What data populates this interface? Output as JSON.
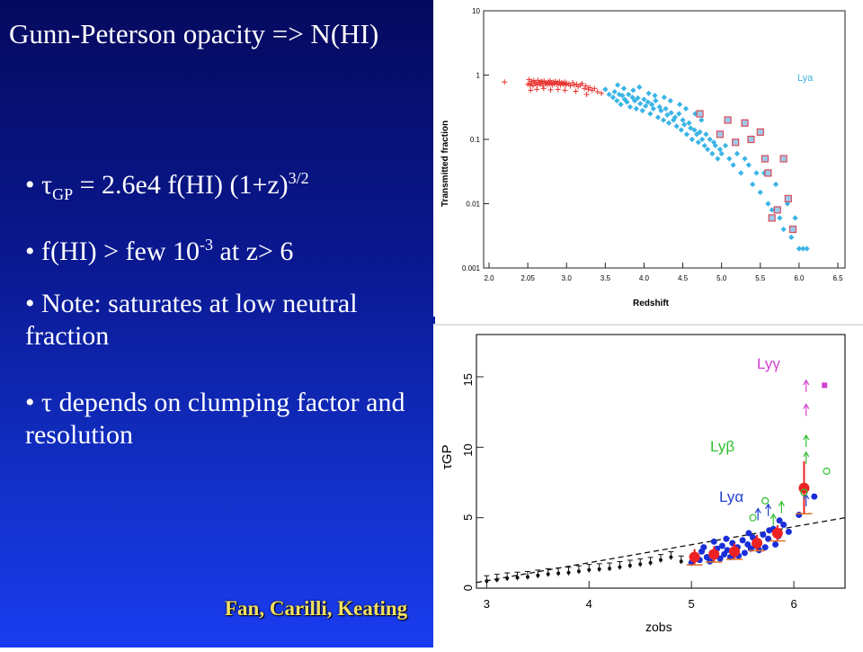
{
  "slide": {
    "title": "Gunn-Peterson opacity => N(HI)",
    "bullet1": {
      "tau": "τ",
      "sub": "GP",
      "mid": " = 2.6e4 f(HI) (1+z)",
      "sup": "3/2"
    },
    "bullet2": {
      "pre": "f(HI) > few 10",
      "sup": "-3",
      "post": " at z> 6"
    },
    "bullet3": "Note: saturates at low neutral fraction",
    "bullet4": "τ depends on clumping factor and resolution",
    "credit": "Fan, Carilli, Keating",
    "colors": {
      "bg_top": "#050a5e",
      "bg_bottom": "#1a3cf0",
      "text": "#ffffff",
      "credit": "#f4e063"
    }
  },
  "chart_data": [
    {
      "type": "scatter",
      "ylabel": "Transmitted fraction",
      "xlabel": "Redshift",
      "legend": "Lya",
      "legend_placement": "top-right",
      "x_ticks": [
        "2.0",
        "2.05",
        "3.0",
        "3.5",
        "4.0",
        "4.5",
        "5.0",
        "5.5",
        "6.0",
        "6.5"
      ],
      "y_ticks": [
        "10",
        "1",
        "0.1",
        "0.01",
        "0.001"
      ],
      "y_scale": "log",
      "ylim": [
        0.001,
        10
      ],
      "series": [
        {
          "color": "#e8332f",
          "marker": "plus",
          "x": [
            2.02,
            2.05,
            2.08,
            2.1,
            2.13,
            2.15,
            2.18,
            2.2,
            2.22,
            2.25,
            2.28,
            2.3,
            2.33,
            2.35,
            2.38,
            2.4,
            2.42,
            2.45,
            2.48,
            2.5,
            2.53,
            2.55,
            2.58,
            2.6,
            2.63,
            2.65,
            2.68,
            2.7,
            2.73,
            2.75,
            2.78,
            2.8,
            2.83,
            2.85,
            2.88,
            2.9,
            2.93,
            2.95,
            2.98,
            3.0,
            3.03,
            3.05,
            3.08,
            3.1,
            3.13,
            3.15,
            3.18,
            3.2,
            3.23,
            3.25,
            3.28,
            3.3,
            3.33,
            3.36,
            3.4,
            3.45,
            2.12,
            2.27,
            2.44,
            2.61,
            2.79,
            2.96,
            3.12,
            3.26
          ],
          "y": [
            0.78,
            0.72,
            0.85,
            0.7,
            0.75,
            0.8,
            0.68,
            0.82,
            0.74,
            0.77,
            0.7,
            0.83,
            0.76,
            0.72,
            0.8,
            0.78,
            0.69,
            0.81,
            0.74,
            0.76,
            0.71,
            0.79,
            0.73,
            0.82,
            0.75,
            0.7,
            0.78,
            0.74,
            0.8,
            0.72,
            0.77,
            0.73,
            0.79,
            0.7,
            0.76,
            0.74,
            0.72,
            0.78,
            0.7,
            0.75,
            0.73,
            0.68,
            0.76,
            0.7,
            0.72,
            0.66,
            0.7,
            0.74,
            0.62,
            0.68,
            0.6,
            0.64,
            0.58,
            0.62,
            0.55,
            0.52,
            0.58,
            0.6,
            0.62,
            0.59,
            0.6,
            0.58,
            0.56,
            0.5
          ]
        },
        {
          "color": "#3ab4e6",
          "marker": "diamond",
          "x": [
            3.5,
            3.55,
            3.6,
            3.62,
            3.65,
            3.68,
            3.7,
            3.72,
            3.75,
            3.78,
            3.8,
            3.82,
            3.85,
            3.88,
            3.9,
            3.92,
            3.95,
            3.98,
            4.0,
            4.02,
            4.05,
            4.08,
            4.1,
            4.12,
            4.15,
            4.18,
            4.2,
            4.22,
            4.25,
            4.28,
            4.3,
            4.32,
            4.35,
            4.38,
            4.4,
            4.42,
            4.45,
            4.48,
            4.5,
            4.52,
            4.55,
            4.58,
            4.6,
            4.62,
            4.65,
            4.68,
            4.7,
            4.72,
            4.75,
            4.78,
            4.8,
            4.82,
            4.85,
            4.88,
            4.9,
            4.92,
            4.95,
            4.98,
            5.0,
            5.05,
            5.1,
            5.15,
            5.2,
            5.25,
            5.3,
            5.35,
            5.4,
            5.45,
            5.5,
            5.55,
            5.6,
            5.65,
            5.7,
            5.75,
            5.8,
            5.85,
            5.9,
            5.95,
            6.0,
            6.05,
            6.1,
            3.66,
            3.74,
            3.86,
            3.94,
            4.06,
            4.14,
            4.26,
            4.34,
            4.46,
            4.54,
            4.66,
            4.74
          ],
          "y": [
            0.6,
            0.5,
            0.45,
            0.55,
            0.4,
            0.5,
            0.35,
            0.48,
            0.42,
            0.38,
            0.5,
            0.32,
            0.45,
            0.4,
            0.3,
            0.44,
            0.36,
            0.28,
            0.42,
            0.33,
            0.38,
            0.25,
            0.35,
            0.3,
            0.4,
            0.22,
            0.32,
            0.28,
            0.2,
            0.3,
            0.24,
            0.18,
            0.26,
            0.2,
            0.22,
            0.16,
            0.25,
            0.14,
            0.2,
            0.17,
            0.12,
            0.18,
            0.15,
            0.1,
            0.14,
            0.12,
            0.09,
            0.13,
            0.1,
            0.08,
            0.12,
            0.07,
            0.1,
            0.06,
            0.09,
            0.08,
            0.05,
            0.07,
            0.06,
            0.08,
            0.05,
            0.04,
            0.06,
            0.03,
            0.05,
            0.04,
            0.02,
            0.03,
            0.015,
            0.03,
            0.01,
            0.008,
            0.02,
            0.006,
            0.004,
            0.01,
            0.003,
            0.006,
            0.002,
            0.002,
            0.002,
            0.7,
            0.62,
            0.58,
            0.65,
            0.52,
            0.48,
            0.45,
            0.4,
            0.35,
            0.3,
            0.25,
            0.2
          ]
        },
        {
          "color": "#d94a5a",
          "marker": "open-square",
          "x": [
            4.72,
            4.98,
            5.08,
            5.18,
            5.3,
            5.38,
            5.5,
            5.56,
            5.6,
            5.65,
            5.72,
            5.8,
            5.86,
            5.92
          ],
          "y": [
            0.25,
            0.12,
            0.2,
            0.09,
            0.18,
            0.1,
            0.13,
            0.05,
            0.03,
            0.006,
            0.008,
            0.05,
            0.012,
            0.004
          ]
        }
      ]
    },
    {
      "type": "scatter",
      "ylabel": "τGP",
      "xlabel": "zobs",
      "xlim": [
        2.9,
        6.5
      ],
      "ylim": [
        0,
        18
      ],
      "x_ticks": [
        "3",
        "4",
        "5",
        "6"
      ],
      "y_ticks": [
        "0",
        "5",
        "10",
        "15"
      ],
      "annotations": [
        {
          "text": "Lyγ",
          "color": "#d040d0"
        },
        {
          "text": "Lyβ",
          "color": "#30c030"
        },
        {
          "text": "Lyα",
          "color": "#2040d0"
        }
      ],
      "trend_line": {
        "style": "dashed",
        "x": [
          2.9,
          6.5
        ],
        "y": [
          0.4,
          5.0
        ]
      },
      "series": [
        {
          "name": "black low-z",
          "color": "#111111",
          "marker": "errorbar",
          "x": [
            3.0,
            3.1,
            3.2,
            3.3,
            3.4,
            3.5,
            3.6,
            3.7,
            3.8,
            3.9,
            4.0,
            4.1,
            4.2,
            4.3,
            4.4,
            4.5,
            4.6,
            4.7,
            4.8,
            4.9
          ],
          "y": [
            0.5,
            0.6,
            0.7,
            0.75,
            0.8,
            0.9,
            1.0,
            1.05,
            1.1,
            1.2,
            1.3,
            1.35,
            1.4,
            1.5,
            1.6,
            1.7,
            1.8,
            2.0,
            2.2,
            1.9
          ]
        },
        {
          "name": "blue",
          "color": "#1a2ed8",
          "marker": "dot",
          "x": [
            5.0,
            5.05,
            5.08,
            5.1,
            5.15,
            5.18,
            5.2,
            5.25,
            5.28,
            5.3,
            5.32,
            5.35,
            5.38,
            5.4,
            5.42,
            5.45,
            5.5,
            5.52,
            5.55,
            5.58,
            5.6,
            5.62,
            5.65,
            5.7,
            5.72,
            5.75,
            5.8,
            5.82,
            5.85,
            5.9,
            5.95,
            6.05,
            6.2,
            5.12,
            5.22,
            5.34,
            5.46,
            5.56,
            5.66,
            5.76,
            5.86
          ],
          "y": [
            1.8,
            2.3,
            2.0,
            2.6,
            2.2,
            1.9,
            2.5,
            2.8,
            2.1,
            3.0,
            2.4,
            2.7,
            2.2,
            3.2,
            2.6,
            2.9,
            3.4,
            2.5,
            3.1,
            2.8,
            3.6,
            3.0,
            3.3,
            3.8,
            2.9,
            3.5,
            4.2,
            3.1,
            3.7,
            4.5,
            4.0,
            5.2,
            6.5,
            2.9,
            3.3,
            3.5,
            2.3,
            3.9,
            2.7,
            4.1,
            4.8
          ]
        },
        {
          "name": "red",
          "color": "#ee2222",
          "marker": "dot-errorbar",
          "x": [
            5.03,
            5.22,
            5.42,
            5.64,
            5.84,
            6.1
          ],
          "y": [
            2.2,
            2.4,
            2.6,
            3.2,
            3.9,
            7.1
          ]
        },
        {
          "name": "Lyγ limit",
          "color": "#d040d0",
          "marker": "arrow-up",
          "x": [
            6.12,
            6.12
          ],
          "y": [
            14.3,
            12.6
          ]
        },
        {
          "name": "Lyβ limit",
          "color": "#30c030",
          "marker": "arrow-up",
          "x": [
            6.12,
            6.12,
            5.88,
            5.8
          ],
          "y": [
            10.4,
            9.2,
            5.7,
            4.8
          ]
        },
        {
          "name": "Lyα limit",
          "color": "#2040d0",
          "marker": "arrow-up",
          "x": [
            5.65,
            5.75,
            6.12
          ],
          "y": [
            5.2,
            5.5,
            6.2
          ]
        }
      ]
    }
  ]
}
